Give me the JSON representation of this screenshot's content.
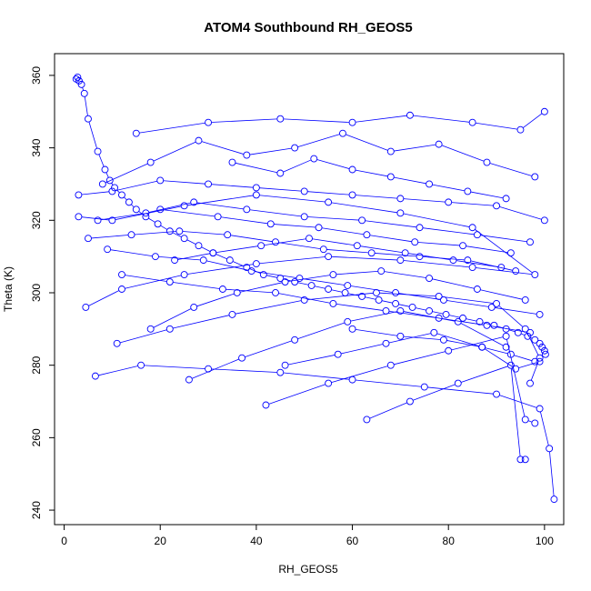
{
  "chart_data": {
    "type": "scatter",
    "title": "ATOM4 Southbound RH_GEOS5",
    "xlabel": "RH_GEOS5",
    "ylabel": "Theta (K)",
    "xlim": [
      -2,
      104
    ],
    "ylim": [
      236,
      366
    ],
    "xticks": [
      "0",
      "20",
      "40",
      "60",
      "80",
      "100"
    ],
    "yticks": [
      "240",
      "260",
      "280",
      "300",
      "320",
      "340",
      "360"
    ],
    "series_color": "#0000ff",
    "marker": "open-circle",
    "connected": true,
    "series": [
      {
        "x": [
          2.5,
          2.8,
          3.1,
          3.6,
          4.2,
          5.0,
          7.0,
          8.5,
          9.5,
          10.5,
          12.0,
          13.5,
          15.0,
          17.0,
          19.5,
          22.0,
          25.0,
          28.0,
          31.0,
          34.5,
          38.0,
          41.5,
          45.0,
          48.0,
          51.5,
          55.0,
          58.5,
          62.0,
          65.5,
          69.0,
          72.5,
          76.0,
          79.5,
          83.0,
          86.5,
          89.5,
          92.0,
          94.5,
          96.5,
          98.0,
          99.0,
          99.5,
          100.0,
          100.2
        ],
        "y": [
          359,
          359.5,
          358.5,
          357.5,
          355,
          348,
          339,
          334,
          331,
          329,
          327,
          325,
          323,
          321,
          319,
          317,
          315,
          313,
          311,
          309,
          307,
          305,
          304,
          303,
          302,
          301,
          300,
          299,
          298,
          297,
          296,
          295,
          294,
          293,
          292,
          291,
          290,
          289,
          288,
          287,
          286,
          285,
          284,
          283
        ]
      },
      {
        "x": [
          4.5,
          12,
          25,
          40,
          55,
          70,
          85,
          98,
          85,
          70,
          55,
          40,
          25,
          10,
          3
        ],
        "y": [
          296,
          301,
          305,
          308,
          310,
          309,
          307,
          305,
          318,
          322,
          325,
          327,
          324,
          320,
          321
        ]
      },
      {
        "x": [
          6.5,
          16,
          30,
          45,
          60,
          75,
          90,
          99,
          101,
          102
        ],
        "y": [
          277,
          280,
          279,
          278,
          276,
          274,
          272,
          268,
          257,
          243
        ]
      },
      {
        "x": [
          11,
          22,
          35,
          50,
          65,
          78,
          90,
          96,
          99,
          97
        ],
        "y": [
          286,
          290,
          294,
          298,
          300,
          299,
          297,
          290,
          282,
          275
        ]
      },
      {
        "x": [
          42,
          55,
          68,
          80,
          92,
          96,
          98
        ],
        "y": [
          269,
          275,
          280,
          284,
          288,
          265,
          264
        ]
      },
      {
        "x": [
          63,
          72,
          82,
          93,
          95,
          96
        ],
        "y": [
          265,
          270,
          275,
          280,
          254,
          254
        ]
      },
      {
        "x": [
          15,
          30,
          45,
          60,
          72,
          85,
          95,
          100
        ],
        "y": [
          344,
          347,
          348,
          347,
          349,
          347,
          345,
          350
        ]
      },
      {
        "x": [
          8,
          18,
          28,
          38,
          48,
          58,
          68,
          78,
          88,
          98
        ],
        "y": [
          330,
          336,
          342,
          338,
          340,
          344,
          339,
          341,
          336,
          332
        ]
      },
      {
        "x": [
          3,
          10,
          20,
          30,
          40,
          50,
          60,
          70,
          80,
          90,
          100
        ],
        "y": [
          327,
          328,
          331,
          330,
          329,
          328,
          327,
          326,
          325,
          324,
          320
        ]
      },
      {
        "x": [
          5,
          14,
          24,
          34,
          44,
          54,
          64,
          74,
          84,
          94
        ],
        "y": [
          315,
          316,
          317,
          316,
          314,
          312,
          311,
          310,
          309,
          306
        ]
      },
      {
        "x": [
          9,
          19,
          29,
          39,
          49,
          59,
          69,
          79,
          89,
          99
        ],
        "y": [
          312,
          310,
          309,
          306,
          304,
          302,
          300,
          298,
          296,
          294
        ]
      },
      {
        "x": [
          12,
          22,
          33,
          44,
          56,
          67,
          78,
          88,
          97
        ],
        "y": [
          305,
          303,
          301,
          300,
          297,
          295,
          293,
          291,
          289
        ]
      },
      {
        "x": [
          26,
          37,
          48,
          59,
          70,
          82,
          92
        ],
        "y": [
          276,
          282,
          287,
          292,
          295,
          292,
          285
        ]
      },
      {
        "x": [
          46,
          57,
          67,
          77,
          87,
          94,
          99
        ],
        "y": [
          280,
          283,
          286,
          289,
          285,
          279,
          281
        ]
      },
      {
        "x": [
          18,
          27,
          36,
          46,
          56,
          66,
          76,
          86,
          96
        ],
        "y": [
          290,
          296,
          300,
          303,
          305,
          306,
          304,
          301,
          298
        ]
      },
      {
        "x": [
          20,
          32,
          43,
          53,
          63,
          73,
          83,
          93
        ],
        "y": [
          323,
          321,
          319,
          318,
          316,
          314,
          313,
          311
        ]
      },
      {
        "x": [
          7,
          17,
          27,
          38,
          50,
          62,
          74,
          86,
          97
        ],
        "y": [
          320,
          322,
          325,
          323,
          321,
          320,
          318,
          316,
          314
        ]
      },
      {
        "x": [
          35,
          45,
          52,
          60,
          68,
          76,
          84,
          92
        ],
        "y": [
          336,
          333,
          337,
          334,
          332,
          330,
          328,
          326
        ]
      },
      {
        "x": [
          23,
          31,
          41,
          51,
          61,
          71,
          81,
          91
        ],
        "y": [
          309,
          311,
          313,
          315,
          313,
          311,
          309,
          307
        ]
      },
      {
        "x": [
          60,
          70,
          79,
          87,
          93,
          98
        ],
        "y": [
          290,
          288,
          287,
          285,
          283,
          281
        ]
      }
    ]
  }
}
